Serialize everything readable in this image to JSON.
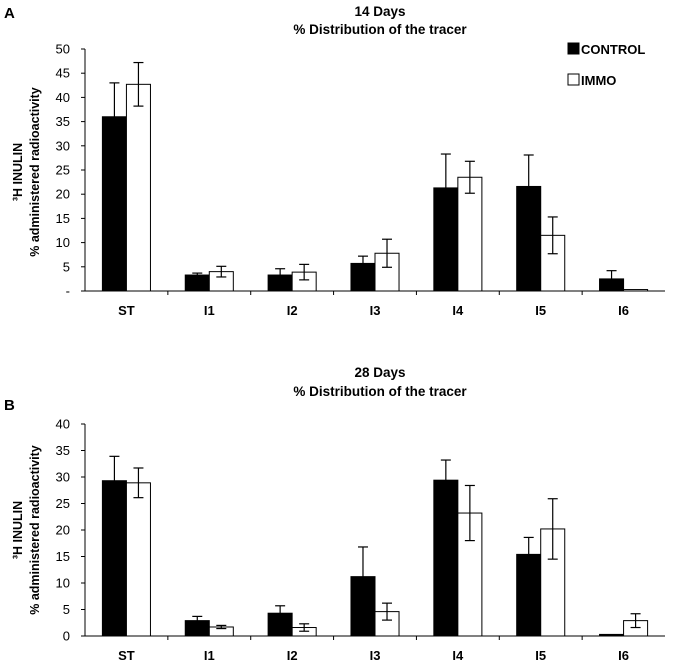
{
  "chart_data": [
    {
      "type": "bar",
      "panel": "A",
      "title_line1": "14 Days",
      "title_line2": "% Distribution of the tracer",
      "ylabel_line1": "³H INULIN",
      "ylabel_line2": "% administered radioactivity",
      "ylim": [
        0,
        50
      ],
      "yticks": [
        "-",
        "5",
        "10",
        "15",
        "20",
        "25",
        "30",
        "35",
        "40",
        "45",
        "50"
      ],
      "categories": [
        "ST",
        "I1",
        "I2",
        "I3",
        "I4",
        "I5",
        "I6"
      ],
      "series": [
        {
          "name": "CONTROL",
          "color": "#000000",
          "values": [
            36,
            3.3,
            3.3,
            5.7,
            21.3,
            21.6,
            2.5
          ],
          "errors": [
            7,
            0.4,
            1.3,
            1.5,
            7,
            6.5,
            1.7
          ]
        },
        {
          "name": "IMMO",
          "color": "#ffffff",
          "values": [
            42.7,
            4,
            3.9,
            7.8,
            23.5,
            11.5,
            0.3
          ],
          "errors": [
            4.5,
            1.1,
            1.6,
            2.9,
            3.3,
            3.8,
            0
          ]
        }
      ]
    },
    {
      "type": "bar",
      "panel": "B",
      "title_line1": "28 Days",
      "title_line2": "% Distribution of the tracer",
      "ylabel_line1": "³H INULIN",
      "ylabel_line2": "% administered radioactivity",
      "ylim": [
        0,
        40
      ],
      "yticks": [
        "0",
        "5",
        "10",
        "15",
        "20",
        "25",
        "30",
        "35",
        "40"
      ],
      "categories": [
        "ST",
        "I1",
        "I2",
        "I3",
        "I4",
        "I5",
        "I6"
      ],
      "series": [
        {
          "name": "CONTROL",
          "color": "#000000",
          "values": [
            29.3,
            2.9,
            4.3,
            11.2,
            29.4,
            15.4,
            0.3
          ],
          "errors": [
            4.6,
            0.8,
            1.4,
            5.6,
            3.8,
            3.2,
            0
          ]
        },
        {
          "name": "IMMO",
          "color": "#ffffff",
          "values": [
            28.9,
            1.7,
            1.6,
            4.6,
            23.2,
            20.2,
            2.9
          ],
          "errors": [
            2.8,
            0.3,
            0.7,
            1.6,
            5.2,
            5.7,
            1.3
          ]
        }
      ]
    }
  ]
}
